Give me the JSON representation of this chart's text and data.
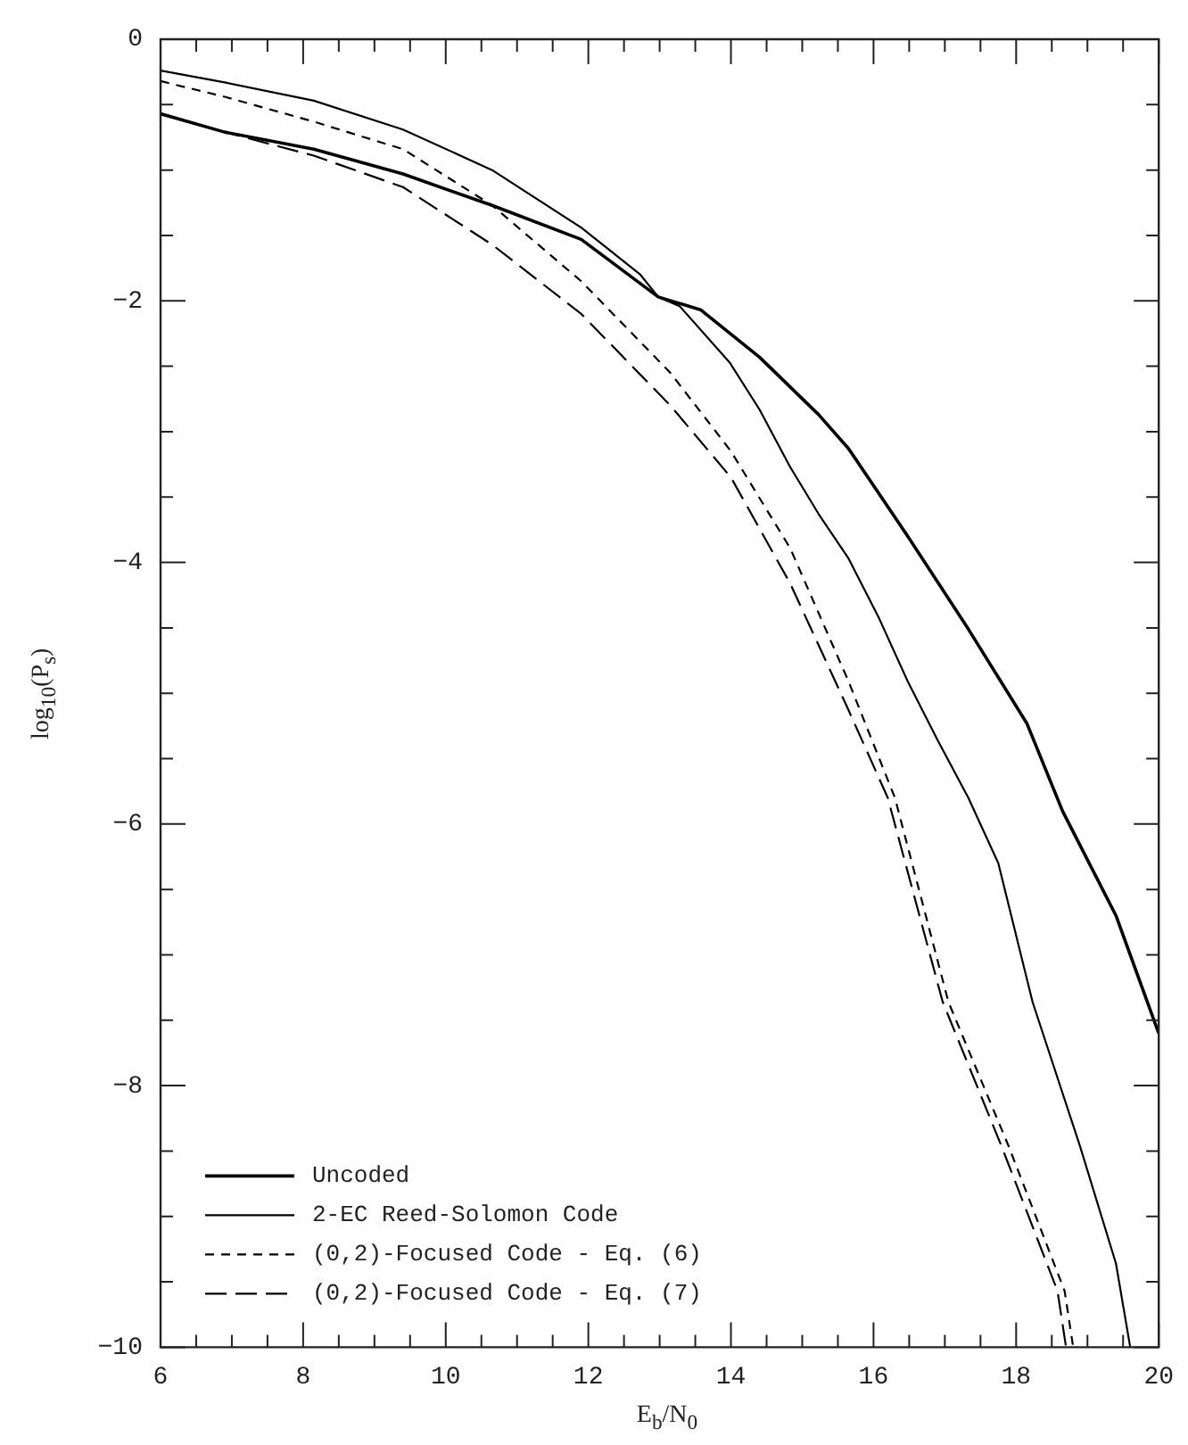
{
  "chart_data": {
    "type": "line",
    "xlabel": "E$_{b}$/N$_{0}$",
    "ylabel": "log$_{10}$(P$_{s}$)",
    "xlim": [
      6,
      20
    ],
    "ylim": [
      -10,
      0
    ],
    "xticks": [
      6,
      {
        "value": 6.5,
        "label": null
      },
      {
        "value": 7,
        "label": null
      },
      {
        "value": 7.5,
        "label": null
      },
      8,
      {
        "value": 8.5,
        "label": null
      },
      {
        "value": 9,
        "label": null
      },
      {
        "value": 9.5,
        "label": null
      },
      10,
      {
        "value": 10.5,
        "label": null
      },
      {
        "value": 11,
        "label": null
      },
      {
        "value": 11.5,
        "label": null
      },
      12,
      {
        "value": 12.5,
        "label": null
      },
      {
        "value": 13,
        "label": null
      },
      {
        "value": 13.5,
        "label": null
      },
      14,
      {
        "value": 14.5,
        "label": null
      },
      {
        "value": 15,
        "label": null
      },
      {
        "value": 15.5,
        "label": null
      },
      16,
      {
        "value": 16.5,
        "label": null
      },
      {
        "value": 17,
        "label": null
      },
      {
        "value": 17.5,
        "label": null
      },
      18,
      {
        "value": 18.5,
        "label": null
      },
      {
        "value": 19,
        "label": null
      },
      {
        "value": 19.5,
        "label": null
      },
      20
    ],
    "yticks": [
      -10,
      {
        "value": -9.5,
        "label": null
      },
      {
        "value": -9,
        "label": null
      },
      {
        "value": -8.5,
        "label": null
      },
      -8,
      {
        "value": -7.5,
        "label": null
      },
      {
        "value": -7,
        "label": null
      },
      {
        "value": -6.5,
        "label": null
      },
      -6,
      {
        "value": -5.5,
        "label": null
      },
      {
        "value": -5,
        "label": null
      },
      {
        "value": -4.5,
        "label": null
      },
      -4,
      {
        "value": -3.5,
        "label": null
      },
      {
        "value": -3,
        "label": null
      },
      {
        "value": -2.5,
        "label": null
      },
      -2,
      {
        "value": -1.5,
        "label": null
      },
      {
        "value": -1,
        "label": null
      },
      {
        "value": -0.5,
        "label": null
      },
      0
    ],
    "legend": "bottom left",
    "grid": false,
    "marker": "none",
    "series": [
      {
        "name": "Uncoded",
        "color": "#000000",
        "line_style": "solid",
        "x": [
          6,
          6.9,
          8.15,
          9.4,
          10.65,
          11.9,
          12.98,
          13.58,
          14.4,
          15.23,
          15.65,
          16.48,
          17.33,
          18.15,
          18.65,
          19.4,
          20
        ],
        "values": [
          -0.57,
          -0.71,
          -0.84,
          -1.03,
          -1.27,
          -1.53,
          -1.97,
          -2.07,
          -2.43,
          -2.87,
          -3.13,
          -3.8,
          -4.51,
          -5.23,
          -5.9,
          -6.7,
          -7.6
        ]
      },
      {
        "name": "2-EC Reed-Solomon Code",
        "color": "#000000",
        "line_style": "solid",
        "x": [
          6,
          6.9,
          8.15,
          9.4,
          10.65,
          11.9,
          12.73,
          12.98,
          13.28,
          13.98,
          14.4,
          14.83,
          15.23,
          15.65,
          16.08,
          16.48,
          16.9,
          17.33,
          17.75,
          18.23,
          18.9,
          19.4,
          19.6
        ],
        "values": [
          -0.24,
          -0.33,
          -0.47,
          -0.69,
          -1.0,
          -1.44,
          -1.8,
          -1.97,
          -2.04,
          -2.47,
          -2.83,
          -3.27,
          -3.63,
          -3.97,
          -4.43,
          -4.91,
          -5.36,
          -5.8,
          -6.3,
          -7.36,
          -8.47,
          -9.36,
          -10
        ]
      },
      {
        "name": "(0,2)-Focused Code - Eq. (6)",
        "color": "#000000",
        "line_style": "dashed",
        "x": [
          6,
          6.9,
          8.15,
          9.4,
          10.65,
          11.9,
          13.15,
          14.0,
          14.83,
          15.65,
          16.3,
          17.05,
          17.9,
          18.68,
          18.8
        ],
        "values": [
          -0.32,
          -0.44,
          -0.63,
          -0.84,
          -1.27,
          -1.85,
          -2.55,
          -3.15,
          -3.89,
          -4.91,
          -5.8,
          -7.36,
          -8.47,
          -9.57,
          -10
        ]
      },
      {
        "name": "(0,2)-Focused Code - Eq. (7)",
        "color": "#000000",
        "line_style": "dashed",
        "x": [
          6,
          6.9,
          8.15,
          9.4,
          10.65,
          11.9,
          13.15,
          14.0,
          14.83,
          15.65,
          16.2,
          16.97,
          17.8,
          18.58,
          18.7
        ],
        "values": [
          -0.57,
          -0.71,
          -0.89,
          -1.13,
          -1.57,
          -2.1,
          -2.8,
          -3.35,
          -4.16,
          -5.13,
          -5.8,
          -7.36,
          -8.47,
          -9.57,
          -10
        ]
      }
    ]
  }
}
